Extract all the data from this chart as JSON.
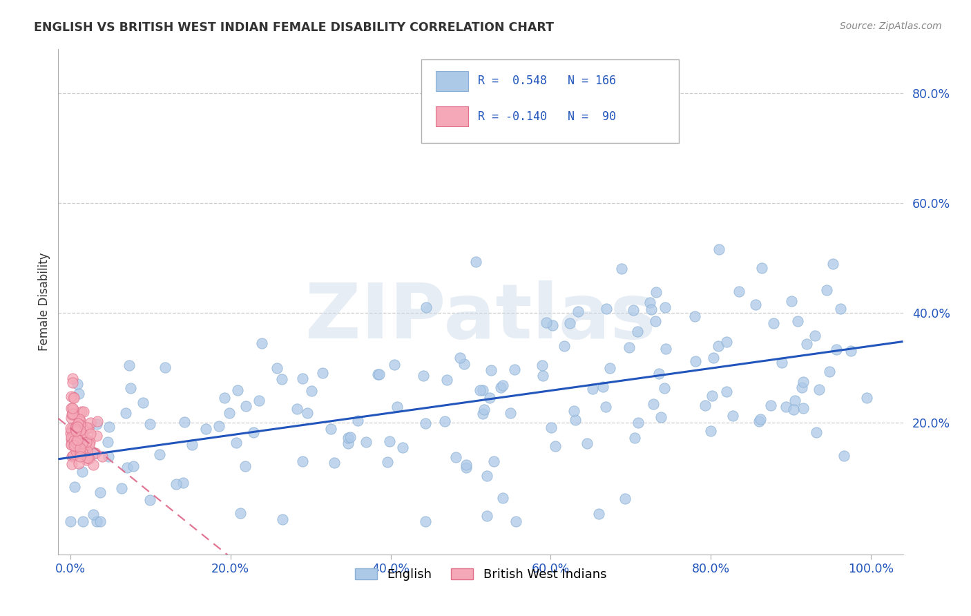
{
  "title": "ENGLISH VS BRITISH WEST INDIAN FEMALE DISABILITY CORRELATION CHART",
  "source": "Source: ZipAtlas.com",
  "ylabel": "Female Disability",
  "r_english": 0.548,
  "n_english": 166,
  "r_bwi": -0.14,
  "n_bwi": 90,
  "xlim": [
    -0.015,
    1.04
  ],
  "ylim": [
    -0.04,
    0.88
  ],
  "xticks": [
    0.0,
    0.2,
    0.4,
    0.6,
    0.8,
    1.0
  ],
  "yticks": [
    0.0,
    0.2,
    0.4,
    0.6,
    0.8
  ],
  "ytick_labels": [
    "",
    "20.0%",
    "40.0%",
    "60.0%",
    "80.0%"
  ],
  "xtick_labels": [
    "0.0%",
    "20.0%",
    "40.0%",
    "60.0%",
    "80.0%",
    "100.0%"
  ],
  "english_color": "#adc9e8",
  "english_edge_color": "#89afd4",
  "bwi_color": "#f5a8b8",
  "bwi_edge_color": "#e0708a",
  "trend_blue": "#2255bb",
  "trend_pink": "#dd6688",
  "watermark": "ZIPatlas",
  "background_color": "#ffffff",
  "grid_color": "#cccccc",
  "legend_box_color": "#ffffff",
  "legend_border_color": "#cccccc",
  "title_color": "#333333",
  "source_color": "#888888",
  "axis_label_color": "#333333",
  "tick_color": "#2255bb"
}
